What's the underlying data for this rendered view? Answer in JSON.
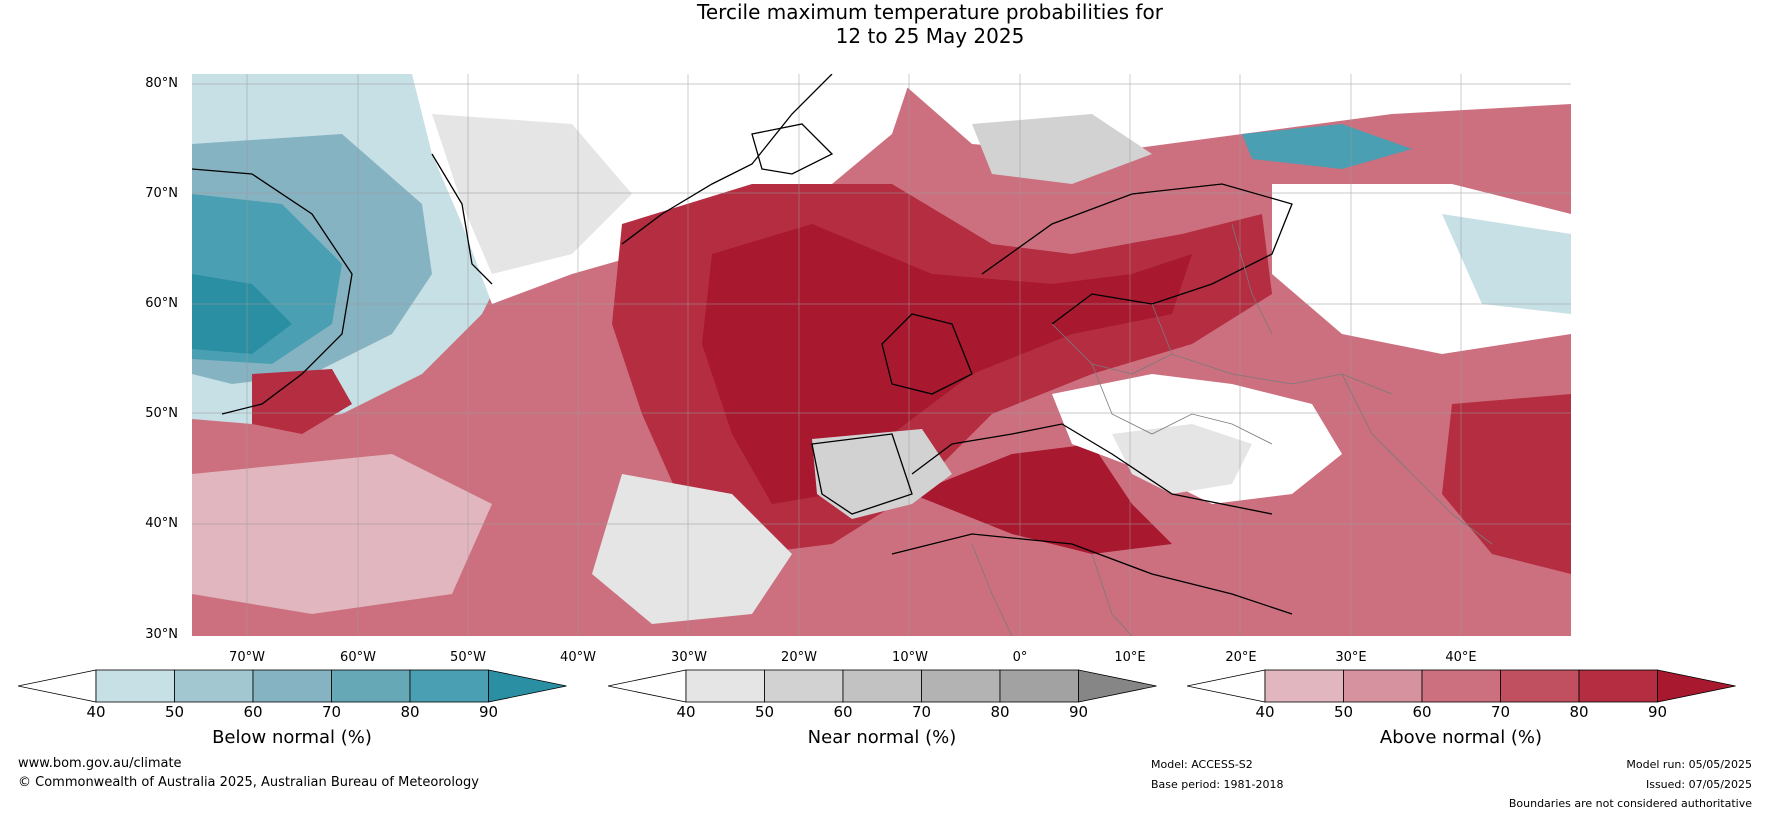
{
  "title": {
    "line1": "Tercile maximum temperature probabilities for",
    "line2": "12 to 25 May 2025"
  },
  "map": {
    "lat_labels": [
      "80°N",
      "70°N",
      "60°N",
      "50°N",
      "40°N",
      "30°N"
    ],
    "lon_labels": [
      "70°W",
      "60°W",
      "50°W",
      "40°W",
      "30°W",
      "20°W",
      "10°W",
      "0°",
      "10°E",
      "20°E",
      "30°E",
      "40°E"
    ],
    "colors": {
      "above": [
        "#e1b6bf",
        "#d6929f",
        "#cc707f",
        "#c0505f",
        "#b42d40",
        "#a8182f"
      ],
      "below": [
        "#c7e0e6",
        "#a3c7d0",
        "#86b3c2",
        "#67a8b6",
        "#4a9fb2",
        "#2b8fa3"
      ],
      "near": [
        "#e5e5e5",
        "#d2d2d2",
        "#c2c2c2",
        "#b3b3b3",
        "#a2a2a2",
        "#868686"
      ]
    }
  },
  "colorbars": [
    {
      "label": "Below normal (%)",
      "ticks": [
        "40",
        "50",
        "60",
        "70",
        "80",
        "90"
      ],
      "colors": [
        "#ffffff",
        "#c7e0e6",
        "#a3c7d0",
        "#86b3c2",
        "#67a8b6",
        "#4a9fb2",
        "#2b8fa3"
      ]
    },
    {
      "label": "Near normal (%)",
      "ticks": [
        "40",
        "50",
        "60",
        "70",
        "80",
        "90"
      ],
      "colors": [
        "#ffffff",
        "#e5e5e5",
        "#d2d2d2",
        "#c2c2c2",
        "#b3b3b3",
        "#a2a2a2",
        "#868686"
      ]
    },
    {
      "label": "Above normal (%)",
      "ticks": [
        "40",
        "50",
        "60",
        "70",
        "80",
        "90"
      ],
      "colors": [
        "#ffffff",
        "#e1b6bf",
        "#d6929f",
        "#cc707f",
        "#c0505f",
        "#b42d40",
        "#a8182f"
      ]
    }
  ],
  "footer": {
    "website": "www.bom.gov.au/climate",
    "copyright": "© Commonwealth of Australia 2025, Australian Bureau of Meteorology",
    "model": "Model: ACCESS-S2",
    "base_period": "Base period: 1981-2018",
    "model_run": "Model run: 05/05/2025",
    "issued": "Issued: 07/05/2025",
    "disclaimer": "Boundaries are not considered authoritative"
  }
}
